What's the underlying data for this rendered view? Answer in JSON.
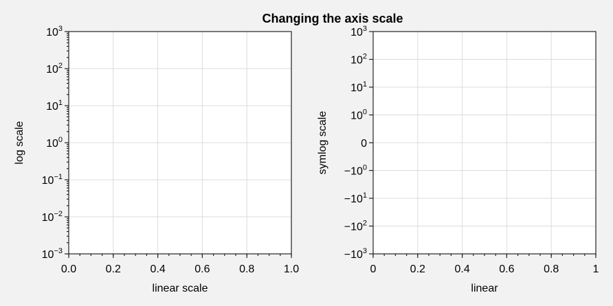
{
  "chart_data": {
    "title": "Changing the axis scale",
    "panels": [
      {
        "type": "line",
        "series": [],
        "xlabel": "linear scale",
        "ylabel": "log scale",
        "xscale": "linear",
        "yscale": "log",
        "xlim": [
          0,
          1
        ],
        "ylim": [
          0.001,
          1000
        ],
        "grid": true,
        "x_ticks": [
          {
            "value": 0,
            "label": "0.0"
          },
          {
            "value": 0.2,
            "label": "0.2"
          },
          {
            "value": 0.4,
            "label": "0.4"
          },
          {
            "value": 0.6,
            "label": "0.6"
          },
          {
            "value": 0.8,
            "label": "0.8"
          },
          {
            "value": 1,
            "label": "1.0"
          }
        ],
        "y_ticks": [
          {
            "value": 1000,
            "base": "10",
            "exp": "3"
          },
          {
            "value": 100,
            "base": "10",
            "exp": "2"
          },
          {
            "value": 10,
            "base": "10",
            "exp": "1"
          },
          {
            "value": 1,
            "base": "10",
            "exp": "0"
          },
          {
            "value": 0.1,
            "base": "10",
            "exp": "−1"
          },
          {
            "value": 0.01,
            "base": "10",
            "exp": "−2"
          },
          {
            "value": 0.001,
            "base": "10",
            "exp": "−3"
          }
        ]
      },
      {
        "type": "line",
        "series": [],
        "xlabel": "linear",
        "ylabel": "symlog scale",
        "xscale": "linear",
        "yscale": "symlog",
        "linthresh": 1,
        "xlim": [
          0,
          1
        ],
        "ylim": [
          -1000,
          1000
        ],
        "grid": true,
        "x_ticks": [
          {
            "value": 0,
            "label": "0"
          },
          {
            "value": 0.2,
            "label": "0.2"
          },
          {
            "value": 0.4,
            "label": "0.4"
          },
          {
            "value": 0.6,
            "label": "0.6"
          },
          {
            "value": 0.8,
            "label": "0.8"
          },
          {
            "value": 1,
            "label": "1"
          }
        ],
        "y_ticks": [
          {
            "value": 1000,
            "base": "10",
            "exp": "3"
          },
          {
            "value": 100,
            "base": "10",
            "exp": "2"
          },
          {
            "value": 10,
            "base": "10",
            "exp": "1"
          },
          {
            "value": 1,
            "base": "10",
            "exp": "0"
          },
          {
            "value": 0,
            "base": "0",
            "exp": ""
          },
          {
            "value": -1,
            "base": "−10",
            "exp": "0"
          },
          {
            "value": -10,
            "base": "−10",
            "exp": "1"
          },
          {
            "value": -100,
            "base": "−10",
            "exp": "2"
          },
          {
            "value": -1000,
            "base": "−10",
            "exp": "3"
          }
        ]
      }
    ]
  }
}
